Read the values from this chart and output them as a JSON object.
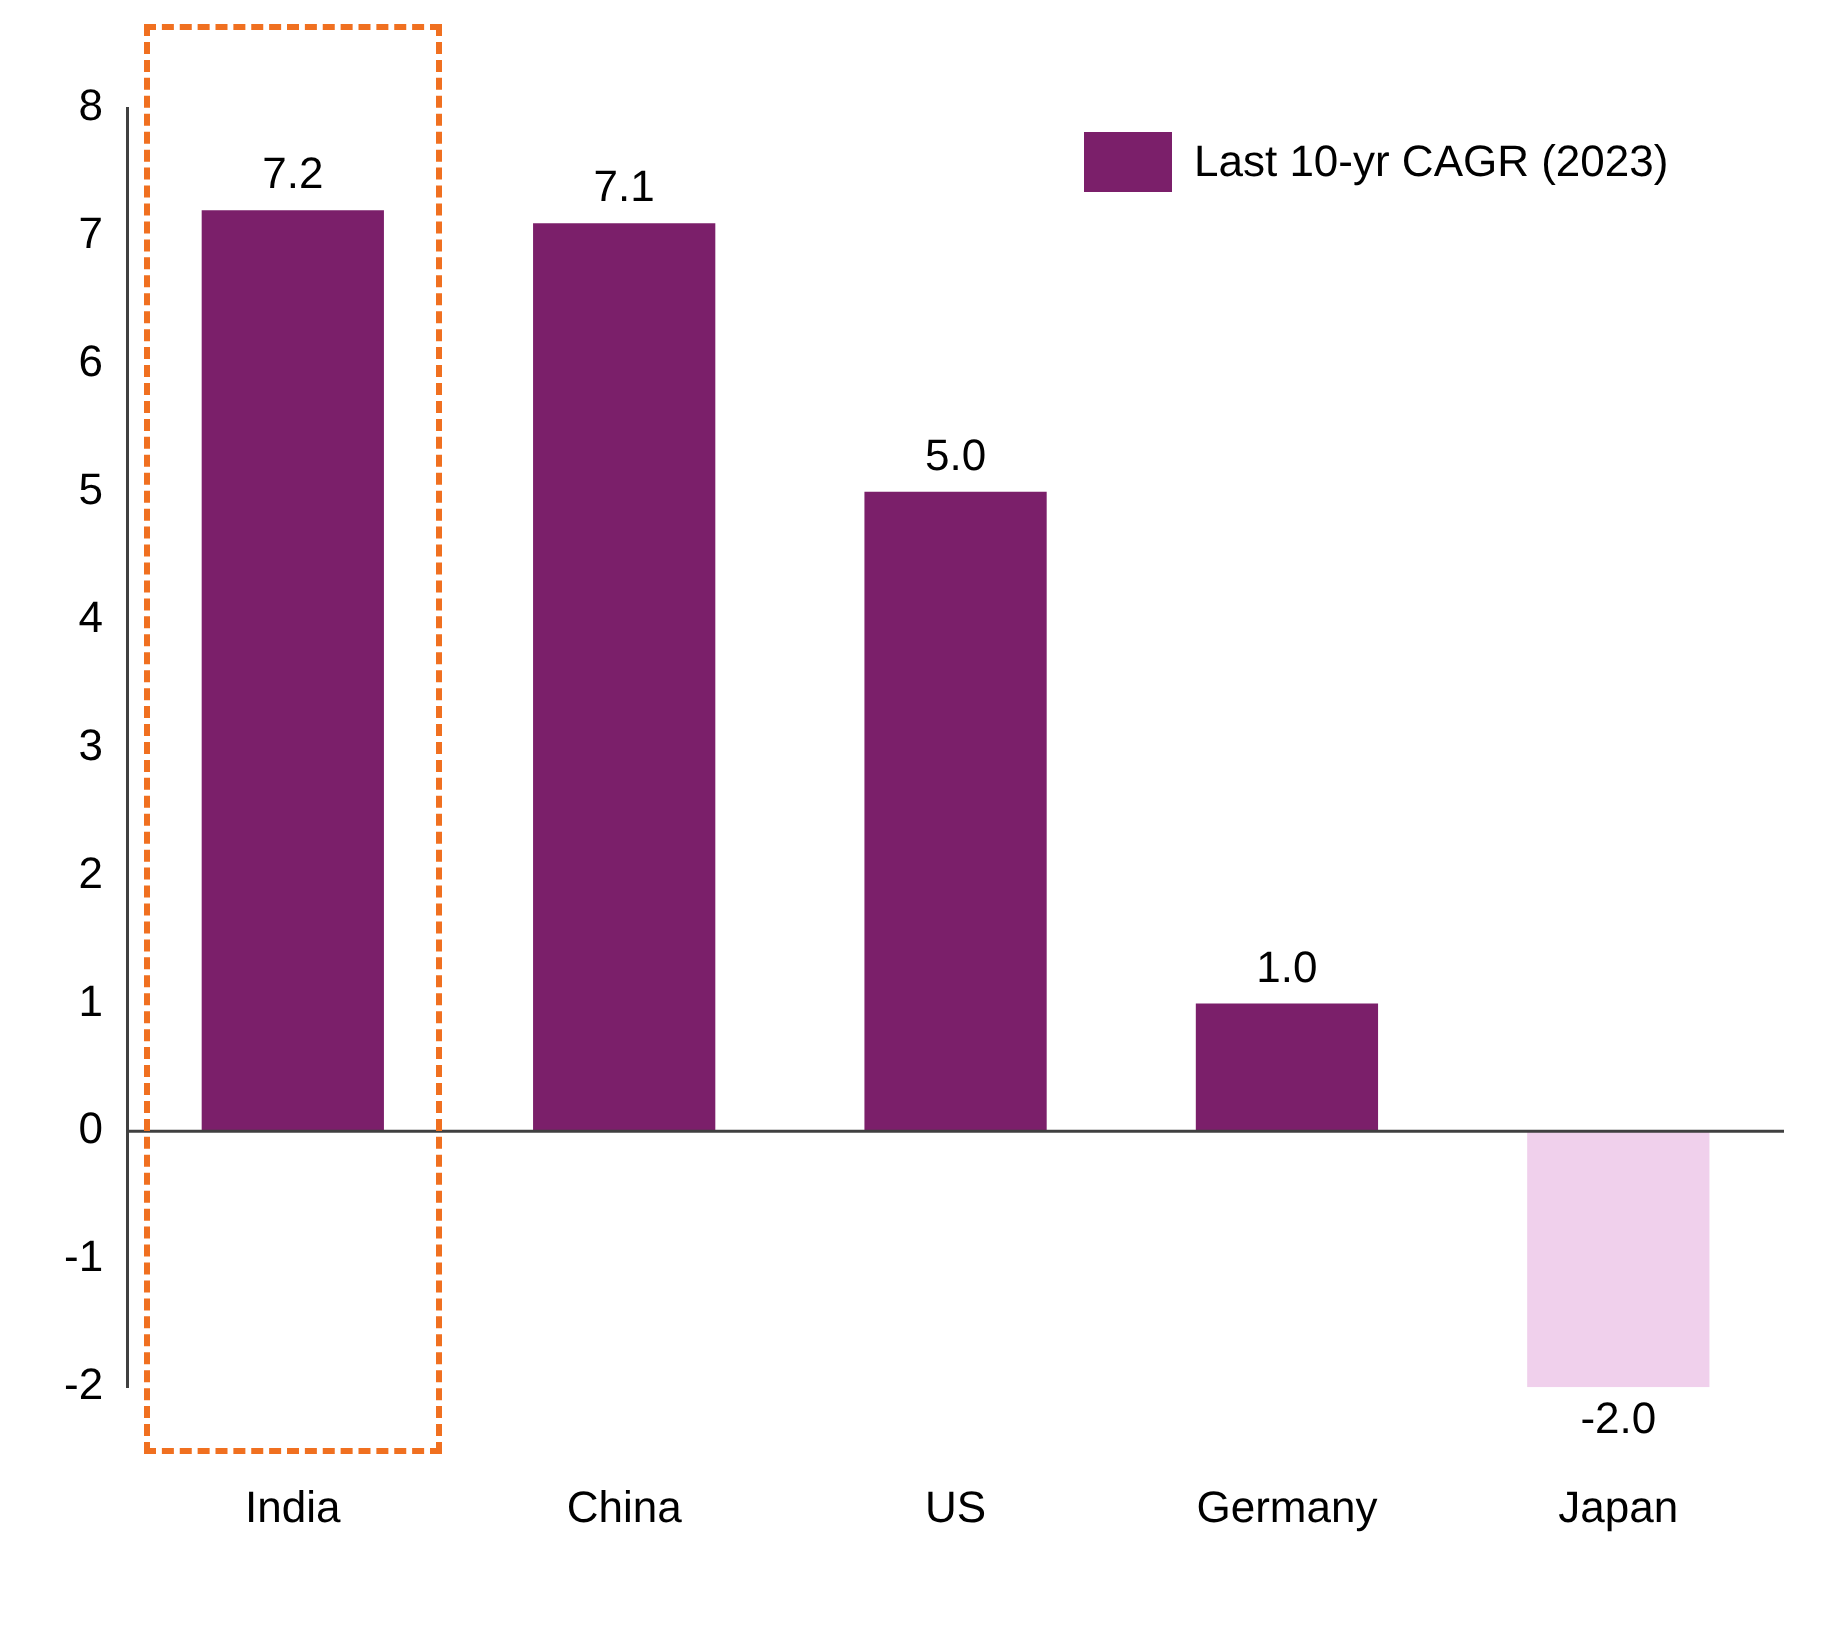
{
  "chart_data": {
    "type": "bar",
    "categories": [
      "India",
      "China",
      "US",
      "Germany",
      "Japan"
    ],
    "series": [
      {
        "name": "Last 10-yr CAGR (2023)",
        "color": "#7b1f6a",
        "colors": [
          "#7b1f6a",
          "#7b1f6a",
          "#7b1f6a",
          "#7b1f6a",
          "#f0d0ec"
        ],
        "values": [
          7.2,
          7.1,
          5.0,
          1.0,
          -2.0
        ],
        "value_labels": [
          "7.2",
          "7.1",
          "5.0",
          "1.0",
          "-2.0"
        ]
      }
    ],
    "ylim": [
      -2,
      8
    ],
    "yticks": [
      -2,
      -1,
      0,
      1,
      2,
      3,
      4,
      5,
      6,
      7,
      8
    ],
    "legend": "top right"
  }
}
